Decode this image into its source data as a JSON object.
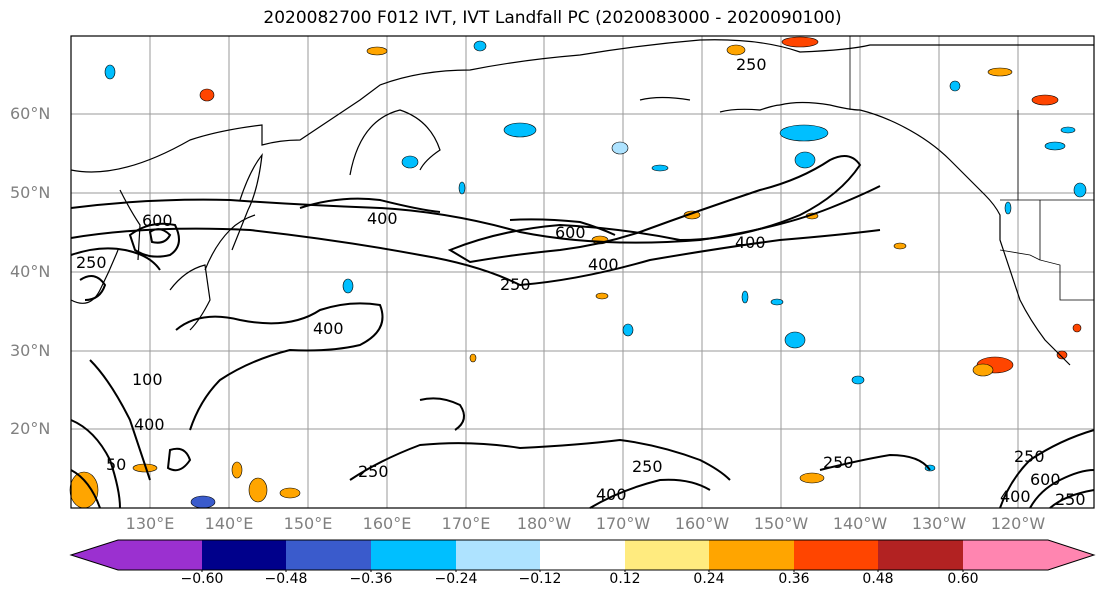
{
  "title": "2020082700 F012 IVT, IVT Landfall PC (2020083000 - 2020090100)",
  "lat_labels": [
    "60°N",
    "50°N",
    "40°N",
    "30°N",
    "20°N"
  ],
  "lon_labels": [
    "130°E",
    "140°E",
    "150°E",
    "160°E",
    "170°E",
    "180°W",
    "170°W",
    "160°W",
    "150°W",
    "140°W",
    "130°W",
    "120°W"
  ],
  "contour_labels": [
    "250",
    "400",
    "600",
    "400",
    "250",
    "400",
    "600",
    "400",
    "250",
    "100",
    "400",
    "50",
    "250",
    "250",
    "400",
    "250",
    "250",
    "600",
    "400",
    "250"
  ],
  "colorbar": {
    "ticks": [
      "−0.60",
      "−0.48",
      "−0.36",
      "−0.24",
      "−0.12",
      "0.12",
      "0.24",
      "0.36",
      "0.48",
      "0.60"
    ],
    "colors": [
      "#9b30d0",
      "#00008b",
      "#3a5bcc",
      "#00bfff",
      "#aee3ff",
      "#ffffff",
      "#ffeb7f",
      "#ffa500",
      "#ff4500",
      "#b22222",
      "#ff85b0"
    ]
  }
}
